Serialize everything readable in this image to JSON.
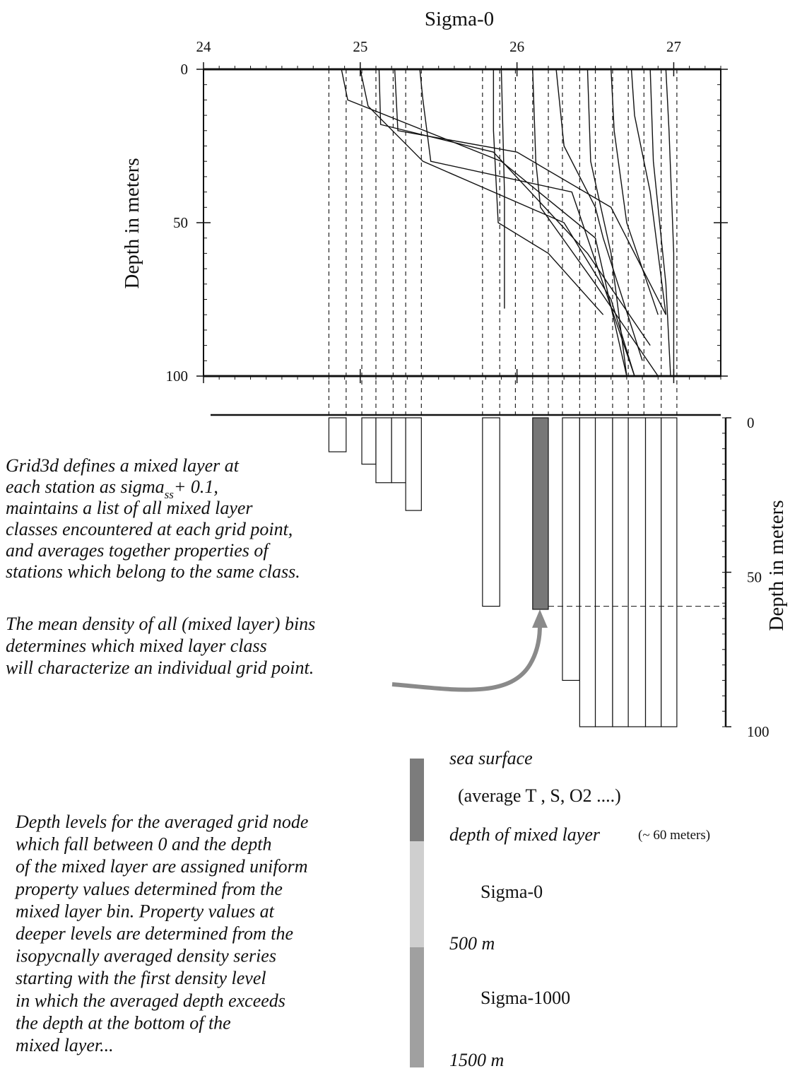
{
  "top_chart": {
    "type": "line",
    "title": "Sigma-0",
    "ylabel": "Depth  in meters",
    "xlim": [
      24,
      27.3
    ],
    "ylim": [
      0,
      100
    ],
    "xticks": [
      24,
      25,
      26,
      27
    ],
    "yticks": [
      0,
      50,
      100
    ],
    "minor_divisions": 10,
    "color": "#111111",
    "dashed_sigmas": [
      24.8,
      24.91,
      25.01,
      25.1,
      25.21,
      25.29,
      25.39,
      25.78,
      25.89,
      25.99,
      26.1,
      26.2,
      26.29,
      26.4,
      26.5,
      26.61,
      26.71,
      26.81,
      26.92,
      27.02
    ],
    "series": [
      {
        "x": [
          24.88,
          24.92,
          25.9,
          26.5,
          26.7
        ],
        "values": [
          0,
          10,
          30,
          55,
          100
        ]
      },
      {
        "x": [
          25.0,
          25.05,
          25.4,
          26.3,
          26.6,
          26.75
        ],
        "values": [
          0,
          12,
          30,
          50,
          75,
          100
        ]
      },
      {
        "x": [
          25.12,
          25.13,
          25.85,
          26.45,
          26.85
        ],
        "values": [
          0,
          18,
          27,
          60,
          90
        ]
      },
      {
        "x": [
          25.22,
          25.24,
          26.0,
          26.6,
          26.95
        ],
        "values": [
          0,
          20,
          27,
          45,
          80
        ]
      },
      {
        "x": [
          25.38,
          25.4,
          25.45,
          26.35,
          26.75
        ],
        "values": [
          0,
          10,
          30,
          40,
          100
        ]
      },
      {
        "x": [
          25.85,
          25.85,
          25.88,
          26.2,
          26.55
        ],
        "values": [
          0,
          20,
          50,
          60,
          80
        ]
      },
      {
        "x": [
          26.1,
          26.12,
          26.15,
          26.5,
          26.9
        ],
        "values": [
          0,
          30,
          45,
          70,
          100
        ]
      },
      {
        "x": [
          26.25,
          26.3,
          26.5,
          26.55,
          26.8
        ],
        "values": [
          0,
          25,
          45,
          55,
          95
        ]
      },
      {
        "x": [
          26.45,
          26.47,
          26.6,
          26.7
        ],
        "values": [
          0,
          30,
          60,
          100
        ]
      },
      {
        "x": [
          26.6,
          26.62,
          26.7,
          26.9
        ],
        "values": [
          0,
          20,
          50,
          80
        ]
      },
      {
        "x": [
          26.73,
          26.75,
          26.85,
          26.95
        ],
        "values": [
          0,
          15,
          40,
          80
        ]
      },
      {
        "x": [
          26.85,
          26.87,
          26.95,
          26.98
        ],
        "values": [
          0,
          30,
          70,
          100
        ]
      },
      {
        "x": [
          26.95,
          26.97,
          27.0,
          27.0
        ],
        "values": [
          0,
          20,
          60,
          100
        ]
      },
      {
        "x": [
          25.9,
          25.92,
          25.92
        ],
        "values": [
          0,
          40,
          78
        ]
      }
    ]
  },
  "bottom_chart": {
    "type": "bar",
    "ylabel": "Depth  in meters",
    "ylim": [
      0,
      100
    ],
    "yticks": [
      0,
      50,
      100
    ],
    "highlight_color": "#777777",
    "mixed_layer_depth": 61,
    "bars": [
      {
        "x0": 24.8,
        "x1": 24.91,
        "depth": 11
      },
      {
        "x0": 25.01,
        "x1": 25.1,
        "depth": 15
      },
      {
        "x0": 25.1,
        "x1": 25.2,
        "depth": 21
      },
      {
        "x0": 25.2,
        "x1": 25.29,
        "depth": 21
      },
      {
        "x0": 25.29,
        "x1": 25.39,
        "depth": 30
      },
      {
        "x0": 25.78,
        "x1": 25.89,
        "depth": 61
      },
      {
        "x0": 26.1,
        "x1": 26.2,
        "depth": 62,
        "highlight": true
      },
      {
        "x0": 26.29,
        "x1": 26.4,
        "depth": 85
      },
      {
        "x0": 26.4,
        "x1": 26.5,
        "depth": 100
      },
      {
        "x0": 26.5,
        "x1": 26.61,
        "depth": 100
      },
      {
        "x0": 26.61,
        "x1": 26.71,
        "depth": 100
      },
      {
        "x0": 26.71,
        "x1": 26.82,
        "depth": 100
      },
      {
        "x0": 26.82,
        "x1": 26.92,
        "depth": 100
      },
      {
        "x0": 26.92,
        "x1": 27.02,
        "depth": 100
      }
    ]
  },
  "text1": {
    "line0": "Grid3d defines a mixed layer at",
    "line1a": "each station as sigma",
    "line1sub": "ss",
    "line1b": "+ 0.1,",
    "line2": "maintains a list of all mixed layer",
    "line3": "classes encountered at each grid point,",
    "line4": "and averages together properties of",
    "line5": "stations which belong to the same class."
  },
  "text2": [
    "The mean density of all (mixed layer) bins",
    "determines which mixed layer class",
    "will characterize an individual grid point."
  ],
  "text3": [
    "Depth levels for the averaged grid node",
    "which fall between 0 and the depth",
    "of the mixed layer are assigned uniform",
    "property values determined from the",
    "mixed layer bin.  Property values at",
    "deeper levels are determined from the",
    "isopycnally averaged density series",
    "starting with the first density level",
    "in which the averaged depth exceeds",
    "the depth at the bottom of the",
    "mixed layer..."
  ],
  "legend": {
    "sea_surface": "sea surface",
    "average": "(average  T ,  S,  O2 ....)",
    "mixed": "depth of mixed layer",
    "mixed_note": "(~ 60 meters)",
    "sigma0": "Sigma-0",
    "m500": "500 m",
    "sigma1000": "Sigma-1000",
    "m1500": "1500 m"
  }
}
